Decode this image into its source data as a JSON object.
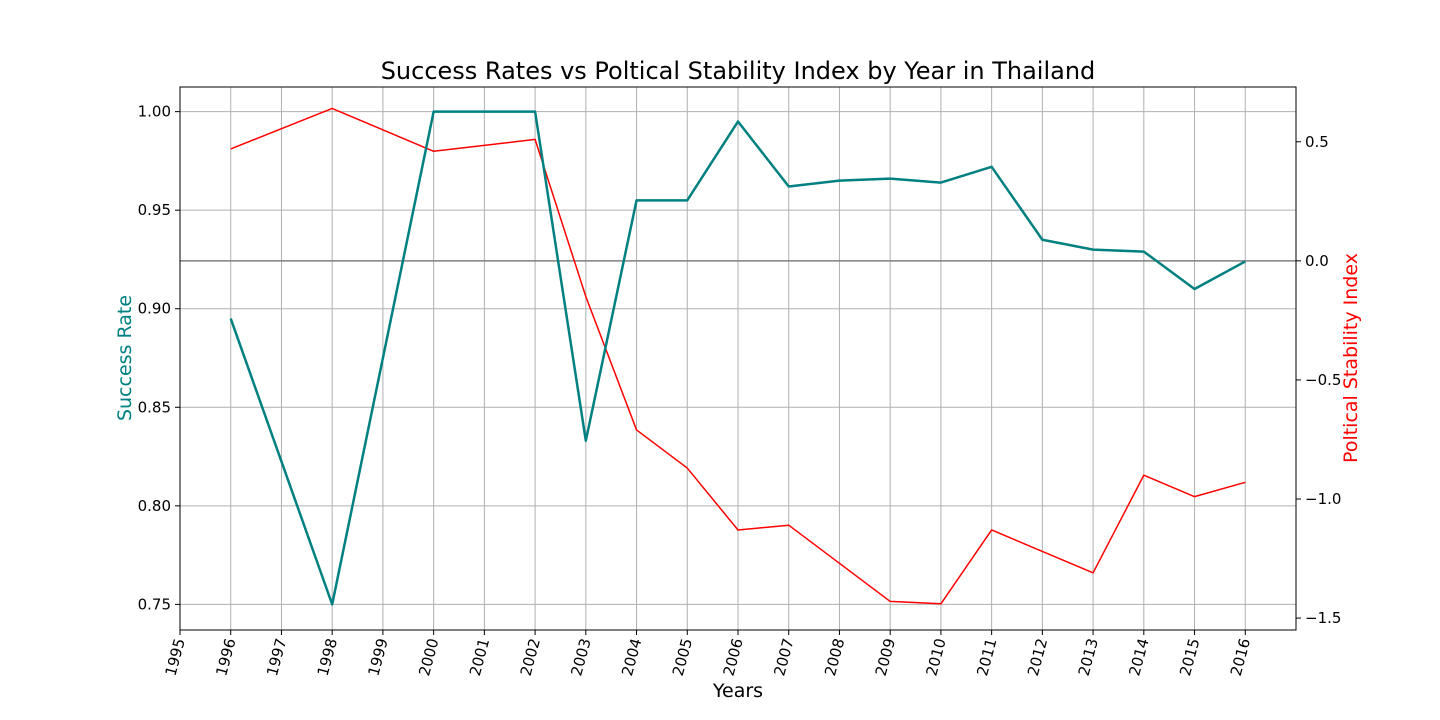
{
  "chart_data": {
    "type": "line",
    "title": "Success Rates vs Poltical Stability Index by Year in Thailand",
    "xlabel": "Years",
    "xlim": [
      1995,
      2017
    ],
    "x_ticks": [
      1995,
      1996,
      1997,
      1998,
      1999,
      2000,
      2001,
      2002,
      2003,
      2004,
      2005,
      2006,
      2007,
      2008,
      2009,
      2010,
      2011,
      2012,
      2013,
      2014,
      2015,
      2016
    ],
    "grid": true,
    "left_axis": {
      "label": "Success Rate",
      "color": "#008080",
      "ylim": [
        0.737,
        1.0125
      ],
      "ticks": [
        0.75,
        0.8,
        0.85,
        0.9,
        0.95,
        1.0
      ],
      "tick_labels": [
        "0.75",
        "0.80",
        "0.85",
        "0.90",
        "0.95",
        "1.00"
      ]
    },
    "right_axis": {
      "label": "Poltical Stability Index",
      "color": "#ff0000",
      "ylim": [
        -1.55,
        0.73
      ],
      "ticks": [
        -1.5,
        -1.0,
        -0.5,
        0.0,
        0.5
      ],
      "tick_labels": [
        "−1.5",
        "−1.0",
        "−0.5",
        "0.0",
        "0.5"
      ],
      "reference_line": 0.0
    },
    "series": [
      {
        "name": "Success Rate",
        "axis": "left",
        "color": "#008080",
        "x": [
          1996,
          1998,
          2000,
          2002,
          2003,
          2004,
          2005,
          2006,
          2007,
          2008,
          2009,
          2010,
          2011,
          2012,
          2013,
          2014,
          2015,
          2016
        ],
        "values": [
          0.895,
          0.75,
          1.0,
          1.0,
          0.833,
          0.955,
          0.955,
          0.995,
          0.962,
          0.965,
          0.966,
          0.964,
          0.972,
          0.935,
          0.93,
          0.929,
          0.91,
          0.924
        ]
      },
      {
        "name": "Political Stability Index",
        "axis": "right",
        "color": "#ff0000",
        "x": [
          1996,
          1998,
          2000,
          2002,
          2003,
          2004,
          2005,
          2006,
          2007,
          2008,
          2009,
          2010,
          2011,
          2012,
          2013,
          2014,
          2015,
          2016
        ],
        "values": [
          0.47,
          0.64,
          0.46,
          0.51,
          -0.15,
          -0.71,
          -0.87,
          -1.13,
          -1.11,
          -1.27,
          -1.43,
          -1.44,
          -1.13,
          -1.22,
          -1.31,
          -0.9,
          -0.99,
          -0.93
        ]
      }
    ]
  }
}
